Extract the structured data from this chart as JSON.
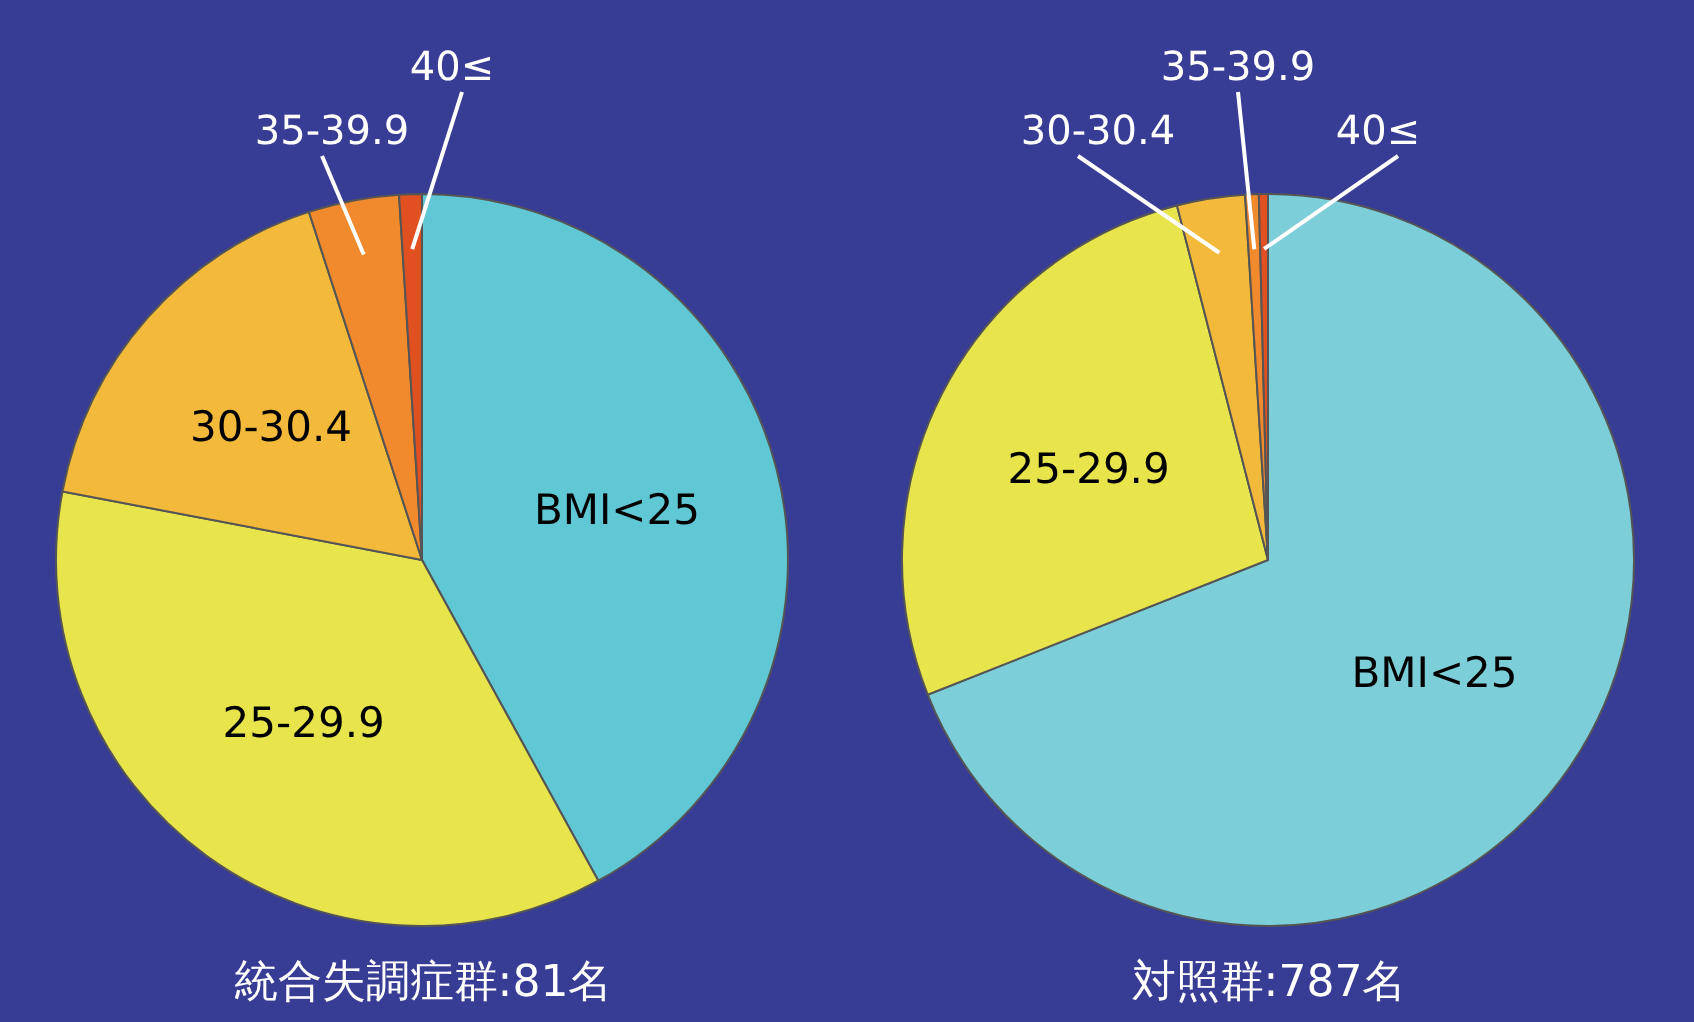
{
  "chart_data": [
    {
      "type": "pie",
      "title": "統合失調症群:81名",
      "categories": [
        "BMI<25",
        "25-29.9",
        "30-30.4",
        "35-39.9",
        "40≤"
      ],
      "values": [
        42,
        36,
        17,
        4,
        1
      ],
      "colors": [
        "#5fc8d4",
        "#e8e44c",
        "#f2b93a",
        "#f08a2c",
        "#e05020"
      ]
    },
    {
      "type": "pie",
      "title": "対照群:787名",
      "categories": [
        "BMI<25",
        "25-29.9",
        "30-30.4",
        "35-39.9",
        "40≤"
      ],
      "values": [
        69,
        27,
        3,
        0.6,
        0.4
      ],
      "colors": [
        "#7ccfd8",
        "#e8e44c",
        "#f2b93a",
        "#f08a2c",
        "#e05020"
      ]
    }
  ]
}
